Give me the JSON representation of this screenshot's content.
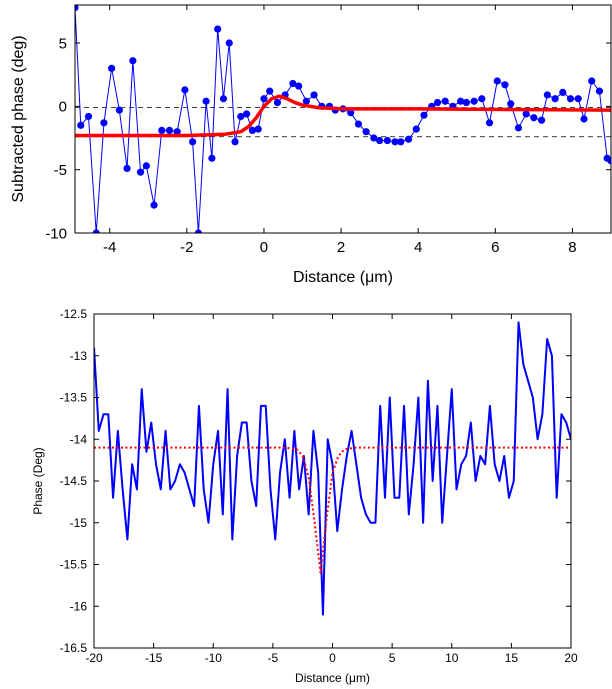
{
  "chart_data": [
    {
      "type": "line",
      "xlabel": "Distance (μm)",
      "ylabel": "Subtracted phase (deg)",
      "xlim": [
        -4.9,
        9
      ],
      "ylim": [
        -10,
        8
      ],
      "xticks": [
        "-4",
        "-2",
        "0",
        "2",
        "4",
        "6",
        "8"
      ],
      "yticks": [
        "5",
        "0",
        "-5",
        "-10"
      ],
      "grid": false,
      "reference_lines_dashed": [
        -0.1,
        -2.4
      ],
      "series": [
        {
          "style": "blue line with circle markers",
          "color": "#0000ff",
          "x": [
            -4.9,
            -4.75,
            -4.55,
            -4.35,
            -4.15,
            -3.95,
            -3.75,
            -3.55,
            -3.4,
            -3.2,
            -3.05,
            -2.85,
            -2.65,
            -2.45,
            -2.25,
            -2.05,
            -1.85,
            -1.7,
            -1.5,
            -1.35,
            -1.2,
            -1.05,
            -0.9,
            -0.75,
            -0.6,
            -0.45,
            -0.3,
            -0.15,
            0.0,
            0.15,
            0.35,
            0.55,
            0.75,
            0.9,
            1.1,
            1.3,
            1.5,
            1.7,
            1.85,
            2.05,
            2.25,
            2.45,
            2.65,
            2.85,
            3.0,
            3.2,
            3.4,
            3.55,
            3.75,
            3.95,
            4.15,
            4.35,
            4.5,
            4.7,
            4.9,
            5.1,
            5.25,
            5.45,
            5.65,
            5.85,
            6.05,
            6.25,
            6.4,
            6.6,
            6.8,
            7.0,
            7.2,
            7.35,
            7.55,
            7.75,
            7.95,
            8.15,
            8.3,
            8.5,
            8.7,
            8.9,
            9.0
          ],
          "y": [
            7.8,
            -1.5,
            -0.8,
            -10,
            -1.3,
            3.0,
            -0.3,
            -4.9,
            3.6,
            -5.2,
            -4.7,
            -7.8,
            -1.9,
            -1.9,
            -2.0,
            1.3,
            -2.8,
            -10,
            0.4,
            -4.1,
            6.1,
            0.6,
            5.0,
            -2.8,
            -0.8,
            -0.6,
            -1.9,
            -1.8,
            0.6,
            1.2,
            0.3,
            0.9,
            1.8,
            1.6,
            0.4,
            0.9,
            0.0,
            0.0,
            -0.3,
            -0.2,
            -0.5,
            -1.4,
            -2.0,
            -2.5,
            -2.7,
            -2.7,
            -2.8,
            -2.8,
            -2.6,
            -1.8,
            -0.7,
            0.0,
            0.3,
            0.4,
            0.0,
            0.4,
            0.3,
            0.4,
            0.6,
            -1.3,
            2.0,
            1.7,
            0.2,
            -1.7,
            -0.6,
            -0.9,
            -1.1,
            0.9,
            0.6,
            1.1,
            0.6,
            0.6,
            -1.0,
            2.0,
            1.2,
            -4.1,
            -4.3
          ]
        },
        {
          "style": "red thick fit line",
          "color": "#ff0000",
          "x": [
            -4.9,
            -2.0,
            -1.0,
            -0.6,
            -0.4,
            -0.2,
            0.0,
            0.2,
            0.4,
            0.6,
            0.8,
            1.0,
            1.4,
            2.0,
            2.5,
            3.0,
            4.0,
            9.0
          ],
          "y": [
            -2.3,
            -2.3,
            -2.2,
            -2.0,
            -1.6,
            -0.9,
            0.0,
            0.6,
            0.8,
            0.6,
            0.3,
            0.1,
            -0.1,
            -0.2,
            -0.2,
            -0.2,
            -0.2,
            -0.3
          ]
        }
      ]
    },
    {
      "type": "line",
      "xlabel": "Distance (μm)",
      "ylabel": "Phase (Deg)",
      "xlim": [
        -20,
        20
      ],
      "ylim": [
        -16.5,
        -12.5
      ],
      "xticks": [
        "-20",
        "-15",
        "-10",
        "-5",
        "0",
        "5",
        "10",
        "15",
        "20"
      ],
      "yticks": [
        "-12.5",
        "-13",
        "-13.5",
        "-14",
        "-14.5",
        "-15",
        "-15.5",
        "-16",
        "-16.5"
      ],
      "grid": false,
      "series": [
        {
          "style": "blue solid line",
          "color": "#0000ff",
          "x": [
            -20,
            -19.6,
            -19.2,
            -18.8,
            -18.4,
            -18,
            -17.6,
            -17.2,
            -16.8,
            -16.4,
            -16,
            -15.6,
            -15.2,
            -14.8,
            -14.4,
            -14,
            -13.6,
            -13.2,
            -12.8,
            -12.4,
            -12,
            -11.6,
            -11.2,
            -10.8,
            -10.4,
            -10,
            -9.6,
            -9.2,
            -8.8,
            -8.4,
            -8,
            -7.6,
            -7.2,
            -6.8,
            -6.4,
            -6,
            -5.6,
            -5.2,
            -4.8,
            -4.4,
            -4,
            -3.6,
            -3.2,
            -2.8,
            -2.4,
            -2,
            -1.6,
            -1.2,
            -0.8,
            -0.4,
            0,
            0.4,
            0.8,
            1.2,
            1.6,
            2,
            2.4,
            2.8,
            3.2,
            3.6,
            4,
            4.4,
            4.8,
            5.2,
            5.6,
            6,
            6.4,
            6.8,
            7.2,
            7.6,
            8,
            8.4,
            8.8,
            9.2,
            9.6,
            10,
            10.4,
            10.8,
            11.2,
            11.6,
            12,
            12.4,
            12.8,
            13.2,
            13.6,
            14,
            14.4,
            14.8,
            15.2,
            15.6,
            16,
            16.4,
            16.8,
            17.2,
            17.6,
            18,
            18.4,
            18.8,
            19.2,
            19.6,
            20
          ],
          "y": [
            -12.9,
            -13.9,
            -13.7,
            -13.7,
            -14.7,
            -13.9,
            -14.6,
            -15.2,
            -14.3,
            -14.6,
            -13.4,
            -14.15,
            -13.8,
            -14.3,
            -14.6,
            -13.9,
            -14.6,
            -14.5,
            -14.3,
            -14.4,
            -14.6,
            -14.8,
            -13.6,
            -14.6,
            -15.0,
            -14.3,
            -13.9,
            -14.9,
            -13.4,
            -15.2,
            -14.2,
            -13.8,
            -13.8,
            -14.5,
            -14.8,
            -13.6,
            -13.6,
            -14.6,
            -15.2,
            -14.4,
            -14.0,
            -14.7,
            -13.9,
            -14.6,
            -14.2,
            -14.9,
            -13.9,
            -14.4,
            -16.1,
            -14.0,
            -14.3,
            -15.1,
            -14.6,
            -14.2,
            -13.9,
            -14.3,
            -14.7,
            -14.9,
            -15.0,
            -15.0,
            -13.6,
            -14.7,
            -13.5,
            -14.7,
            -14.7,
            -13.6,
            -14.9,
            -14.3,
            -13.5,
            -15.0,
            -13.3,
            -14.5,
            -13.6,
            -15.0,
            -14.2,
            -13.4,
            -14.6,
            -14.3,
            -14.2,
            -13.8,
            -14.5,
            -14.2,
            -14.3,
            -13.6,
            -14.3,
            -14.5,
            -14.2,
            -14.7,
            -14.5,
            -12.6,
            -13.1,
            -13.3,
            -13.5,
            -14.0,
            -13.7,
            -12.8,
            -13.0,
            -14.7,
            -13.7,
            -13.8,
            -14.0
          ],
          "note": "values approximate"
        },
        {
          "style": "red dotted Gaussian fit",
          "color": "#ff0000",
          "x": [
            -20,
            -4,
            -3,
            -2.5,
            -2,
            -1.5,
            -1,
            -0.5,
            0,
            0.5,
            1,
            2,
            20
          ],
          "y": [
            -14.1,
            -14.1,
            -14.12,
            -14.2,
            -14.45,
            -15.0,
            -15.6,
            -14.95,
            -14.4,
            -14.2,
            -14.12,
            -14.1,
            -14.1
          ]
        }
      ]
    }
  ]
}
